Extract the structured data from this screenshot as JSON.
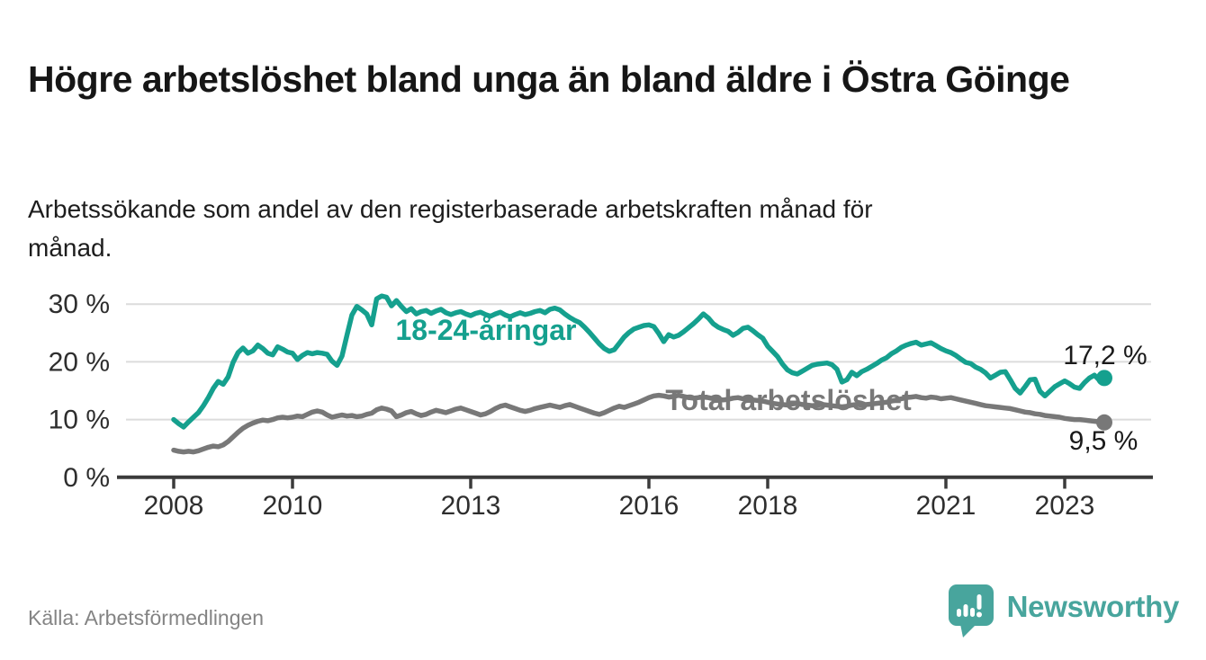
{
  "header": {
    "title": "Högre arbetslöshet bland unga än bland äldre i Östra Göinge",
    "subtitle": "Arbetssökande som andel av den registerbaserade arbetskraften månad för månad."
  },
  "chart_data": {
    "type": "line",
    "x_unit": "month",
    "x_range": [
      "2008-01",
      "2023-09"
    ],
    "ylim": [
      0,
      33
    ],
    "grid": "horizontal",
    "legend_position": "inline-annotations",
    "y_ticks": [
      {
        "value": 0,
        "label": "0 %"
      },
      {
        "value": 10,
        "label": "10 %"
      },
      {
        "value": 20,
        "label": "20 %"
      },
      {
        "value": 30,
        "label": "30 %"
      }
    ],
    "x_ticks": [
      {
        "year": 2008,
        "label": "2008"
      },
      {
        "year": 2010,
        "label": "2010"
      },
      {
        "year": 2013,
        "label": "2013"
      },
      {
        "year": 2016,
        "label": "2016"
      },
      {
        "year": 2018,
        "label": "2018"
      },
      {
        "year": 2021,
        "label": "2021"
      },
      {
        "year": 2023,
        "label": "2023"
      }
    ],
    "series": [
      {
        "name": "18-24-åringar",
        "color": "#15a08e",
        "end_label": "17,2 %",
        "end_value": 17.2,
        "values": [
          10.0,
          9.3,
          8.7,
          9.6,
          10.4,
          11.2,
          12.4,
          13.8,
          15.4,
          16.6,
          16.1,
          17.4,
          19.9,
          21.6,
          22.4,
          21.5,
          21.9,
          22.9,
          22.3,
          21.5,
          21.2,
          22.6,
          22.2,
          21.7,
          21.5,
          20.4,
          21.1,
          21.6,
          21.4,
          21.6,
          21.5,
          21.3,
          20.1,
          19.4,
          21.0,
          24.6,
          28.1,
          29.6,
          29.0,
          28.3,
          26.4,
          30.9,
          31.4,
          31.2,
          29.7,
          30.6,
          29.6,
          28.7,
          29.2,
          28.3,
          28.7,
          28.9,
          28.4,
          28.8,
          29.1,
          28.5,
          28.2,
          28.5,
          28.7,
          28.3,
          28.0,
          28.4,
          28.6,
          28.2,
          27.9,
          28.3,
          28.6,
          28.1,
          27.8,
          28.2,
          28.5,
          28.2,
          28.4,
          28.7,
          28.9,
          28.5,
          29.1,
          29.3,
          29.0,
          28.3,
          27.7,
          27.2,
          26.8,
          26.0,
          25.1,
          24.1,
          23.1,
          22.3,
          21.8,
          22.1,
          23.2,
          24.3,
          25.1,
          25.7,
          26.0,
          26.3,
          26.4,
          26.1,
          24.9,
          23.5,
          24.7,
          24.3,
          24.6,
          25.2,
          25.9,
          26.6,
          27.4,
          28.3,
          27.6,
          26.6,
          26.0,
          25.6,
          25.3,
          24.6,
          25.1,
          25.8,
          26.0,
          25.4,
          24.7,
          24.1,
          22.7,
          21.8,
          20.9,
          19.6,
          18.6,
          18.1,
          17.9,
          18.4,
          18.9,
          19.4,
          19.6,
          19.7,
          19.8,
          19.5,
          18.7,
          16.5,
          16.9,
          18.2,
          17.6,
          18.3,
          18.7,
          19.2,
          19.7,
          20.3,
          20.7,
          21.4,
          21.9,
          22.5,
          22.9,
          23.2,
          23.4,
          22.9,
          23.1,
          23.3,
          22.8,
          22.3,
          21.9,
          21.6,
          21.1,
          20.5,
          19.9,
          19.7,
          19.1,
          18.7,
          18.1,
          17.2,
          17.7,
          18.2,
          18.3,
          16.9,
          15.4,
          14.6,
          15.7,
          16.9,
          17.0,
          14.9,
          14.1,
          14.9,
          15.7,
          16.2,
          16.7,
          16.2,
          15.6,
          15.4,
          16.4,
          17.2,
          17.7,
          16.8,
          17.2
        ]
      },
      {
        "name": "Total arbetslöshet",
        "color": "#787878",
        "end_label": "9,5 %",
        "end_value": 9.5,
        "values": [
          4.7,
          4.5,
          4.4,
          4.5,
          4.4,
          4.6,
          4.9,
          5.2,
          5.4,
          5.3,
          5.6,
          6.2,
          7.0,
          7.8,
          8.5,
          9.0,
          9.4,
          9.7,
          9.9,
          9.8,
          10.0,
          10.3,
          10.4,
          10.3,
          10.4,
          10.6,
          10.5,
          10.9,
          11.3,
          11.5,
          11.3,
          10.8,
          10.4,
          10.6,
          10.8,
          10.6,
          10.7,
          10.5,
          10.6,
          10.9,
          11.1,
          11.7,
          12.0,
          11.8,
          11.5,
          10.5,
          10.8,
          11.2,
          11.4,
          11.0,
          10.7,
          10.9,
          11.3,
          11.6,
          11.4,
          11.2,
          11.5,
          11.8,
          12.0,
          11.7,
          11.4,
          11.1,
          10.8,
          11.0,
          11.4,
          11.9,
          12.3,
          12.5,
          12.2,
          11.9,
          11.6,
          11.4,
          11.6,
          11.9,
          12.1,
          12.3,
          12.5,
          12.3,
          12.1,
          12.4,
          12.6,
          12.3,
          12.0,
          11.7,
          11.4,
          11.1,
          10.9,
          11.2,
          11.6,
          12.0,
          12.3,
          12.1,
          12.4,
          12.7,
          13.0,
          13.4,
          13.8,
          14.1,
          14.2,
          14.1,
          13.9,
          14.0,
          14.2,
          14.0,
          13.8,
          13.7,
          13.8,
          13.9,
          13.8,
          13.6,
          13.5,
          13.4,
          13.5,
          13.7,
          13.8,
          13.6,
          13.5,
          13.4,
          13.3,
          13.2,
          13.0,
          12.8,
          12.7,
          12.6,
          12.5,
          12.7,
          12.8,
          12.6,
          12.5,
          12.4,
          12.5,
          12.6,
          12.5,
          12.4,
          12.3,
          12.2,
          12.3,
          12.5,
          12.6,
          12.5,
          12.6,
          12.7,
          12.8,
          12.9,
          13.0,
          13.2,
          13.4,
          13.6,
          13.8,
          13.9,
          14.0,
          13.8,
          13.7,
          13.9,
          13.8,
          13.6,
          13.7,
          13.8,
          13.6,
          13.4,
          13.2,
          13.0,
          12.8,
          12.6,
          12.4,
          12.3,
          12.2,
          12.1,
          12.0,
          11.9,
          11.7,
          11.5,
          11.3,
          11.2,
          11.0,
          10.9,
          10.7,
          10.6,
          10.5,
          10.4,
          10.2,
          10.1,
          10.0,
          10.0,
          9.9,
          9.8,
          9.7,
          9.6,
          9.5
        ]
      }
    ]
  },
  "footer": {
    "source": "Källa: Arbetsförmedlingen",
    "brand": "Newsworthy"
  },
  "colors": {
    "young": "#15a08e",
    "total": "#787878",
    "brand": "#48a59d",
    "grid": "#dcdcdc",
    "axis": "#3b3b3b",
    "text": "#161616"
  }
}
